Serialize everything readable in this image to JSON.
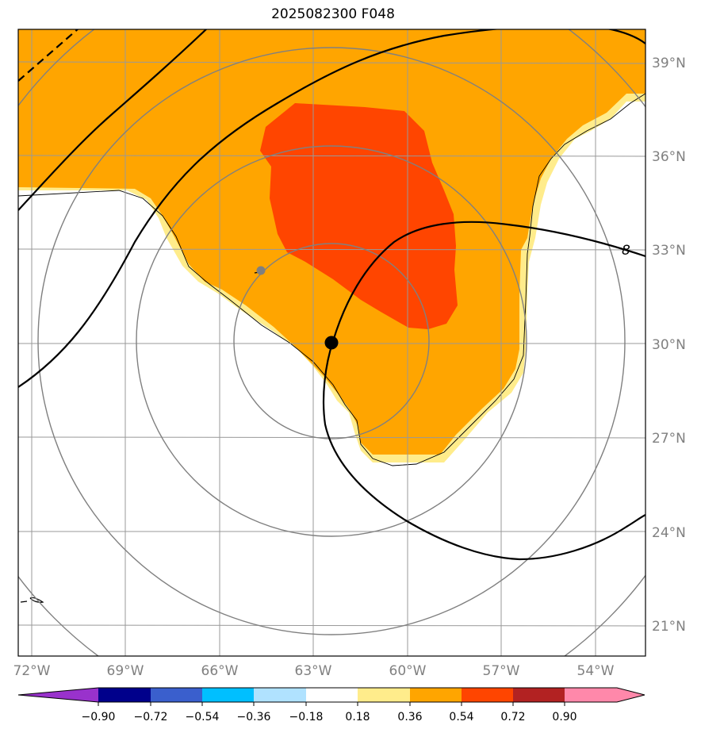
{
  "title": "2025082300 F048",
  "map": {
    "lon_labels": [
      "72°W",
      "69°W",
      "66°W",
      "63°W",
      "60°W",
      "57°W",
      "54°W"
    ],
    "lat_labels": [
      "39°N",
      "36°N",
      "33°N",
      "30°N",
      "27°N",
      "24°N",
      "21°N"
    ],
    "contour_label": "8",
    "storm_center": {
      "lon": "62.4°W",
      "lat": "30.0°N"
    },
    "grid_color": "#999999",
    "land_color": "#000000"
  },
  "colorbar": {
    "ticks": [
      "−0.90",
      "−0.72",
      "−0.54",
      "−0.36",
      "−0.18",
      "0.18",
      "0.36",
      "0.54",
      "0.72",
      "0.90"
    ],
    "colors": [
      "#9932cc",
      "#00008b",
      "#3a5fcd",
      "#00bfff",
      "#b0e2ff",
      "#ffffff",
      "#ffec8b",
      "#ffa500",
      "#ff4500",
      "#b22222",
      "#ff88aa"
    ]
  },
  "fields": {
    "fill_colors": {
      "light": "#ffec8b",
      "medium": "#ffa500",
      "strong": "#ff4500"
    }
  }
}
